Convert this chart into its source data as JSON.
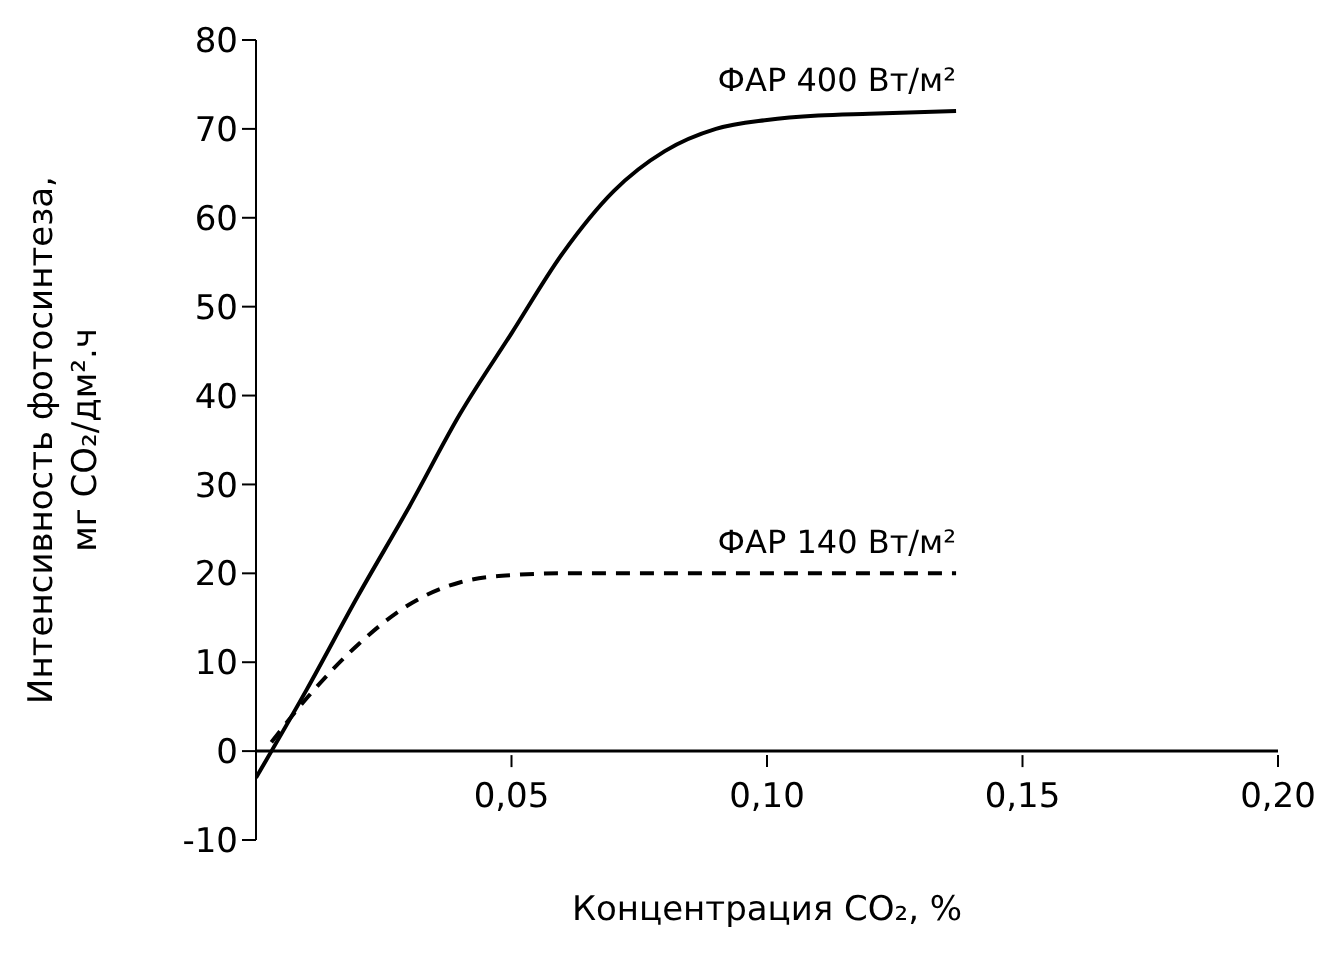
{
  "chart_data": {
    "type": "line",
    "xlabel": "Концентрация CO₂, %",
    "ylabel": "Интенсивность фотосинтеза,\nмг CO₂/дм².ч",
    "xlim": [
      0,
      0.2
    ],
    "ylim": [
      -10,
      80
    ],
    "xticks": [
      {
        "value": 0.05,
        "label": "0,05"
      },
      {
        "value": 0.1,
        "label": "0,10"
      },
      {
        "value": 0.15,
        "label": "0,15"
      },
      {
        "value": 0.2,
        "label": "0,20"
      }
    ],
    "yticks": [
      -10,
      0,
      10,
      20,
      30,
      40,
      50,
      60,
      70,
      80
    ],
    "marker": "none",
    "series": [
      {
        "name": "ФАР 400 Вт/м²",
        "color": "#000000",
        "line_style": "solid",
        "x": [
          0,
          0.01,
          0.02,
          0.03,
          0.04,
          0.05,
          0.06,
          0.07,
          0.08,
          0.09,
          0.1,
          0.11,
          0.12,
          0.137
        ],
        "values": [
          -3,
          7,
          17.5,
          27.5,
          38,
          47,
          56,
          63,
          67.5,
          70,
          71,
          71.5,
          71.7,
          72
        ]
      },
      {
        "name": "ФАР 140 Вт/м²",
        "color": "#000000",
        "line_style": "dashed",
        "x": [
          0.003,
          0.01,
          0.02,
          0.03,
          0.04,
          0.05,
          0.06,
          0.08,
          0.1,
          0.12,
          0.137
        ],
        "values": [
          1,
          6,
          12,
          16.5,
          19,
          19.8,
          20,
          20,
          20,
          20,
          20
        ]
      }
    ]
  }
}
